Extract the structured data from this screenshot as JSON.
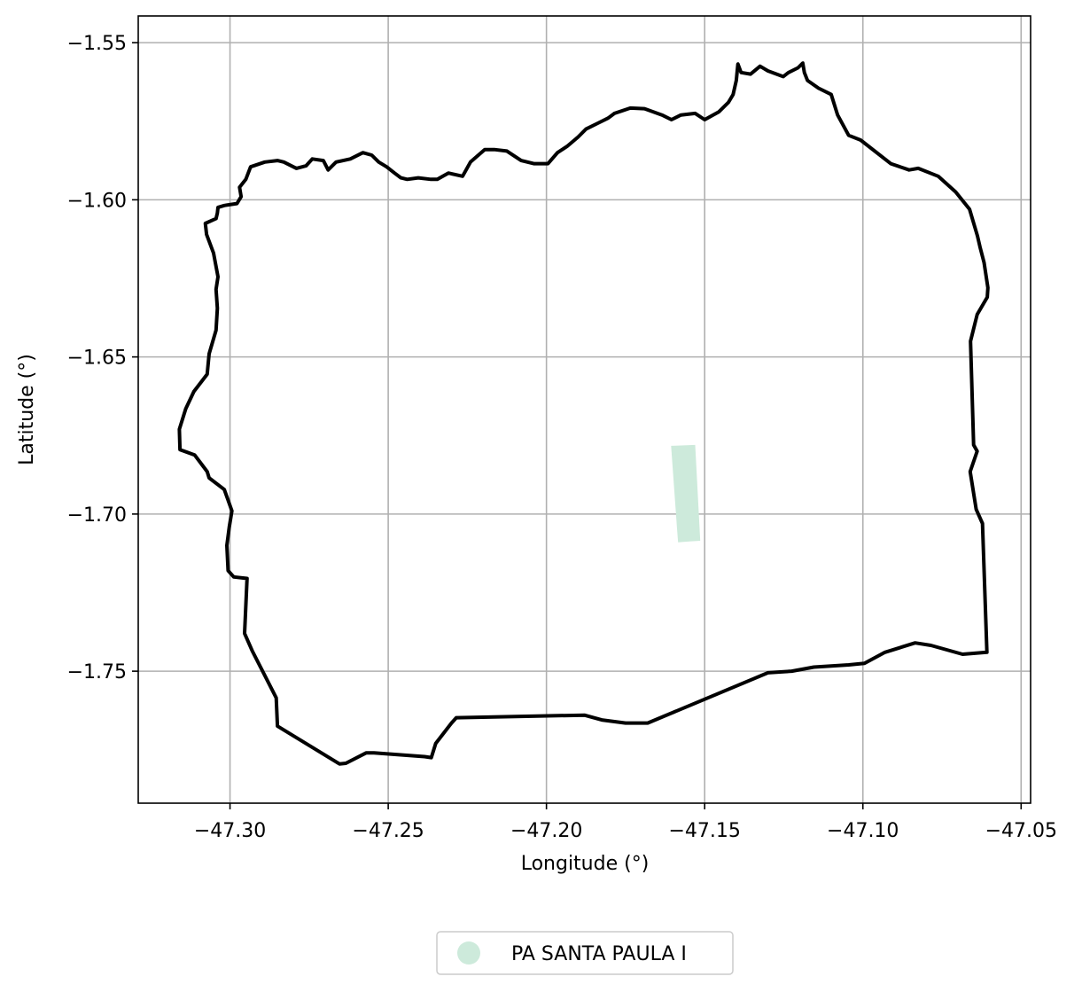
{
  "map": {
    "x_axis": {
      "label": "Longitude (°)",
      "range": [
        -47.329,
        -47.047
      ],
      "ticks": [
        -47.3,
        -47.25,
        -47.2,
        -47.15,
        -47.1,
        -47.05
      ],
      "tick_labels": [
        "−47.30",
        "−47.25",
        "−47.20",
        "−47.15",
        "−47.10",
        "−47.05"
      ]
    },
    "y_axis": {
      "label": "Latitude (°)",
      "range": [
        -1.792,
        -1.5415
      ],
      "ticks": [
        -1.55,
        -1.6,
        -1.65,
        -1.7,
        -1.75
      ],
      "tick_labels": [
        "−1.55",
        "−1.60",
        "−1.65",
        "−1.70",
        "−1.75"
      ]
    },
    "grid": true,
    "legend": {
      "placement": "bottom-center, below the axes",
      "entries": [
        {
          "label": "PA SANTA PAULA I",
          "marker": "circle",
          "color": "#cdeadb"
        }
      ]
    },
    "colors": {
      "boundary": "#000000",
      "parcel": "#cdeadb",
      "grid": "#b0b0b0",
      "frame": "#000000"
    },
    "boundary_polygon": [
      [
        -47.2978,
        -1.6012
      ],
      [
        -47.3018,
        -1.6018
      ],
      [
        -47.3038,
        -1.6024
      ],
      [
        -47.304,
        -1.6042
      ],
      [
        -47.3044,
        -1.606
      ],
      [
        -47.3078,
        -1.6075
      ],
      [
        -47.3074,
        -1.611
      ],
      [
        -47.3052,
        -1.617
      ],
      [
        -47.3038,
        -1.6245
      ],
      [
        -47.3044,
        -1.6285
      ],
      [
        -47.304,
        -1.6345
      ],
      [
        -47.3044,
        -1.6415
      ],
      [
        -47.3066,
        -1.649
      ],
      [
        -47.3072,
        -1.6555
      ],
      [
        -47.3114,
        -1.661
      ],
      [
        -47.314,
        -1.6665
      ],
      [
        -47.316,
        -1.673
      ],
      [
        -47.3158,
        -1.6795
      ],
      [
        -47.3112,
        -1.6812
      ],
      [
        -47.3072,
        -1.6865
      ],
      [
        -47.3066,
        -1.6885
      ],
      [
        -47.3018,
        -1.6922
      ],
      [
        -47.2994,
        -1.699
      ],
      [
        -47.3002,
        -1.704
      ],
      [
        -47.301,
        -1.71
      ],
      [
        -47.3006,
        -1.718
      ],
      [
        -47.2988,
        -1.72
      ],
      [
        -47.2946,
        -1.7205
      ],
      [
        -47.2954,
        -1.738
      ],
      [
        -47.293,
        -1.7435
      ],
      [
        -47.2854,
        -1.7585
      ],
      [
        -47.285,
        -1.7675
      ],
      [
        -47.2654,
        -1.7795
      ],
      [
        -47.2634,
        -1.7793
      ],
      [
        -47.257,
        -1.776
      ],
      [
        -47.2545,
        -1.776
      ],
      [
        -47.2385,
        -1.7772
      ],
      [
        -47.2364,
        -1.7775
      ],
      [
        -47.235,
        -1.773
      ],
      [
        -47.23,
        -1.7665
      ],
      [
        -47.2285,
        -1.7648
      ],
      [
        -47.188,
        -1.764
      ],
      [
        -47.1825,
        -1.7655
      ],
      [
        -47.175,
        -1.7665
      ],
      [
        -47.168,
        -1.7665
      ],
      [
        -47.13,
        -1.7505
      ],
      [
        -47.1225,
        -1.75
      ],
      [
        -47.1155,
        -1.7487
      ],
      [
        -47.1045,
        -1.748
      ],
      [
        -47.0995,
        -1.7475
      ],
      [
        -47.093,
        -1.744
      ],
      [
        -47.0835,
        -1.741
      ],
      [
        -47.0785,
        -1.7418
      ],
      [
        -47.0685,
        -1.7446
      ],
      [
        -47.0608,
        -1.744
      ],
      [
        -47.0622,
        -1.703
      ],
      [
        -47.0642,
        -1.6985
      ],
      [
        -47.0661,
        -1.6865
      ],
      [
        -47.0639,
        -1.68
      ],
      [
        -47.065,
        -1.678
      ],
      [
        -47.066,
        -1.645
      ],
      [
        -47.0639,
        -1.6365
      ],
      [
        -47.0607,
        -1.631
      ],
      [
        -47.0605,
        -1.628
      ],
      [
        -47.0617,
        -1.62
      ],
      [
        -47.063,
        -1.615
      ],
      [
        -47.0638,
        -1.6115
      ],
      [
        -47.0663,
        -1.603
      ],
      [
        -47.0707,
        -1.5975
      ],
      [
        -47.0762,
        -1.5925
      ],
      [
        -47.0825,
        -1.59
      ],
      [
        -47.0854,
        -1.5905
      ],
      [
        -47.0912,
        -1.5885
      ],
      [
        -47.1007,
        -1.581
      ],
      [
        -47.1045,
        -1.5795
      ],
      [
        -47.108,
        -1.573
      ],
      [
        -47.11,
        -1.5665
      ],
      [
        -47.114,
        -1.5645
      ],
      [
        -47.1175,
        -1.562
      ],
      [
        -47.1185,
        -1.5595
      ],
      [
        -47.119,
        -1.5565
      ],
      [
        -47.1205,
        -1.558
      ],
      [
        -47.1235,
        -1.5595
      ],
      [
        -47.1252,
        -1.5608
      ],
      [
        -47.13,
        -1.559
      ],
      [
        -47.1325,
        -1.5575
      ],
      [
        -47.1355,
        -1.56
      ],
      [
        -47.1385,
        -1.5595
      ],
      [
        -47.1395,
        -1.5568
      ],
      [
        -47.14,
        -1.562
      ],
      [
        -47.141,
        -1.5665
      ],
      [
        -47.1425,
        -1.569
      ],
      [
        -47.1455,
        -1.572
      ],
      [
        -47.15,
        -1.5745
      ],
      [
        -47.153,
        -1.5725
      ],
      [
        -47.1575,
        -1.573
      ],
      [
        -47.1605,
        -1.5745
      ],
      [
        -47.1635,
        -1.573
      ],
      [
        -47.169,
        -1.571
      ],
      [
        -47.1735,
        -1.5708
      ],
      [
        -47.1785,
        -1.5725
      ],
      [
        -47.1805,
        -1.574
      ],
      [
        -47.1835,
        -1.5755
      ],
      [
        -47.1875,
        -1.5775
      ],
      [
        -47.19,
        -1.58
      ],
      [
        -47.1935,
        -1.583
      ],
      [
        -47.1965,
        -1.585
      ],
      [
        -47.1995,
        -1.5885
      ],
      [
        -47.204,
        -1.5885
      ],
      [
        -47.208,
        -1.5875
      ],
      [
        -47.2125,
        -1.5845
      ],
      [
        -47.2165,
        -1.584
      ],
      [
        -47.2195,
        -1.584
      ],
      [
        -47.224,
        -1.588
      ],
      [
        -47.2265,
        -1.5925
      ],
      [
        -47.231,
        -1.5915
      ],
      [
        -47.2345,
        -1.5935
      ],
      [
        -47.2365,
        -1.5935
      ],
      [
        -47.2405,
        -1.593
      ],
      [
        -47.244,
        -1.5935
      ],
      [
        -47.246,
        -1.593
      ],
      [
        -47.248,
        -1.5915
      ],
      [
        -47.2505,
        -1.5895
      ],
      [
        -47.253,
        -1.588
      ],
      [
        -47.2552,
        -1.5858
      ],
      [
        -47.258,
        -1.585
      ],
      [
        -47.262,
        -1.587
      ],
      [
        -47.2665,
        -1.588
      ],
      [
        -47.269,
        -1.5905
      ],
      [
        -47.2705,
        -1.5875
      ],
      [
        -47.274,
        -1.587
      ],
      [
        -47.276,
        -1.5892
      ],
      [
        -47.279,
        -1.59
      ],
      [
        -47.283,
        -1.588
      ],
      [
        -47.285,
        -1.5875
      ],
      [
        -47.289,
        -1.588
      ],
      [
        -47.2935,
        -1.5895
      ],
      [
        -47.295,
        -1.5935
      ],
      [
        -47.297,
        -1.596
      ],
      [
        -47.2965,
        -1.599
      ]
    ],
    "parcel_polygon": [
      [
        -47.1606,
        -1.6783
      ],
      [
        -47.153,
        -1.678
      ],
      [
        -47.1514,
        -1.7085
      ],
      [
        -47.1548,
        -1.7087
      ],
      [
        -47.1584,
        -1.709
      ],
      [
        -47.1587,
        -1.705
      ]
    ]
  }
}
